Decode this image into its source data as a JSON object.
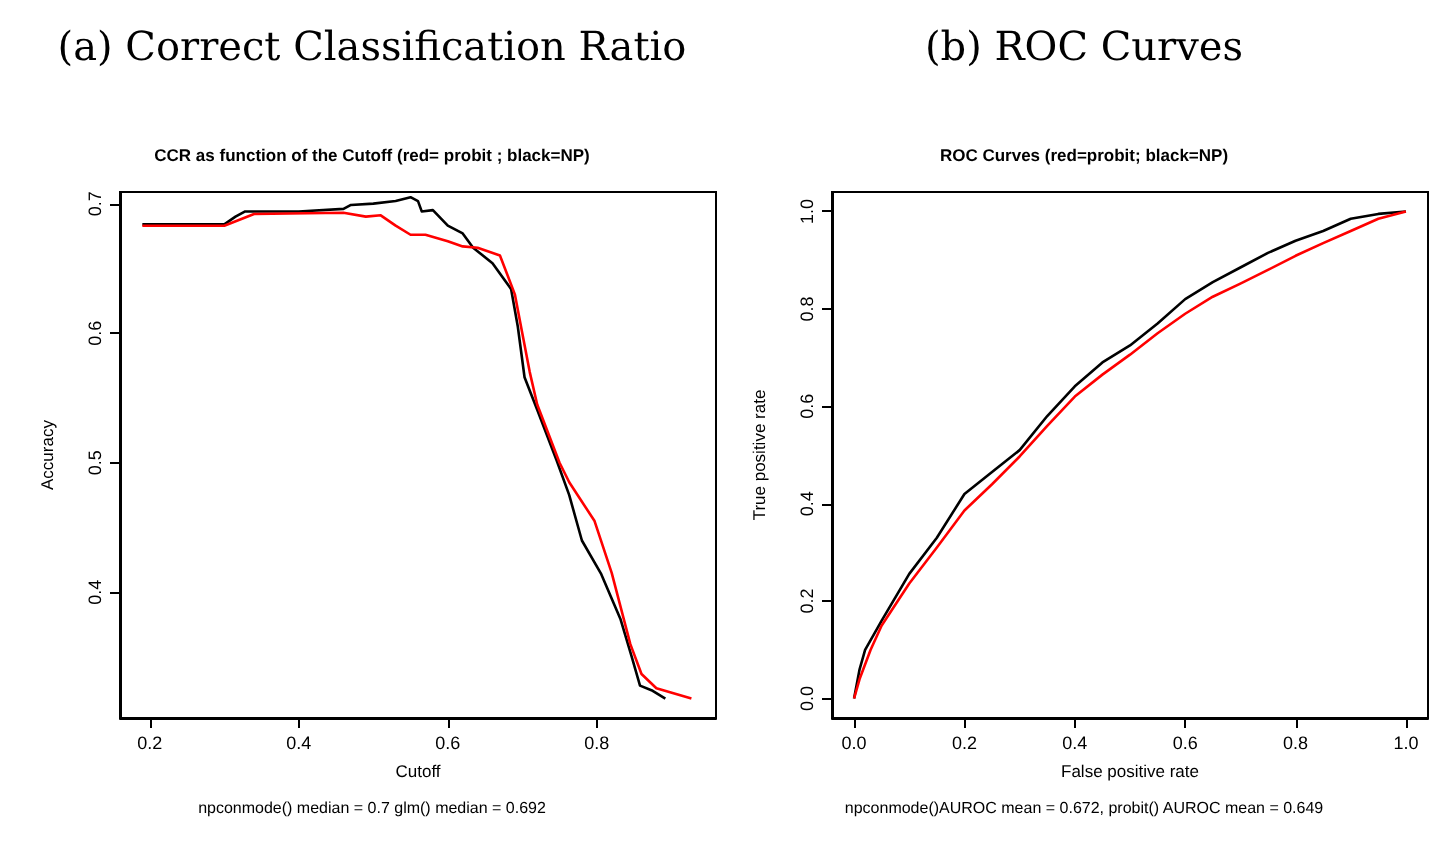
{
  "chart_data": [
    {
      "type": "line",
      "title": "(a) Correct Classification Ratio",
      "subtitle": "CCR as function of the Cutoff (red= probit ; black=NP)",
      "xlabel": "Cutoff",
      "ylabel": "Accuracy",
      "annotations": [
        "npconmode() median = 0.7 glm() median = 0.692"
      ],
      "xlim": [
        0.16,
        0.96
      ],
      "ylim": [
        0.303,
        0.709
      ],
      "xticks": [
        0.2,
        0.4,
        0.6,
        0.8
      ],
      "yticks": [
        0.4,
        0.5,
        0.6,
        0.7
      ],
      "grid": false,
      "marker": "none",
      "line_style": "solid",
      "series": [
        {
          "color": "#000000",
          "x": [
            0.19,
            0.3,
            0.315,
            0.328,
            0.4,
            0.46,
            0.47,
            0.5,
            0.53,
            0.55,
            0.56,
            0.565,
            0.58,
            0.6,
            0.62,
            0.634,
            0.66,
            0.685,
            0.694,
            0.703,
            0.72,
            0.746,
            0.763,
            0.78,
            0.806,
            0.832,
            0.847,
            0.858,
            0.875,
            0.892
          ],
          "values": [
            0.684,
            0.684,
            0.69,
            0.694,
            0.694,
            0.696,
            0.699,
            0.7,
            0.702,
            0.705,
            0.702,
            0.694,
            0.695,
            0.683,
            0.677,
            0.666,
            0.654,
            0.634,
            0.605,
            0.566,
            0.541,
            0.502,
            0.475,
            0.44,
            0.414,
            0.379,
            0.35,
            0.328,
            0.324,
            0.318
          ]
        },
        {
          "color": "#ff0000",
          "x": [
            0.19,
            0.3,
            0.34,
            0.46,
            0.49,
            0.51,
            0.53,
            0.55,
            0.57,
            0.6,
            0.62,
            0.64,
            0.67,
            0.69,
            0.7,
            0.71,
            0.72,
            0.75,
            0.763,
            0.797,
            0.82,
            0.845,
            0.86,
            0.88,
            0.927
          ],
          "values": [
            0.683,
            0.683,
            0.692,
            0.693,
            0.69,
            0.691,
            0.683,
            0.676,
            0.676,
            0.671,
            0.667,
            0.666,
            0.66,
            0.63,
            0.6,
            0.57,
            0.545,
            0.5,
            0.485,
            0.455,
            0.415,
            0.36,
            0.337,
            0.326,
            0.318
          ]
        }
      ]
    },
    {
      "type": "line",
      "title": "(b) ROC Curves",
      "subtitle": "ROC Curves (red=probit; black=NP)",
      "xlabel": "False positive rate",
      "ylabel": "True positive rate",
      "annotations": [
        "npconmode()AUROC mean = 0.672, probit() AUROC mean = 0.649"
      ],
      "xlim": [
        -0.04,
        1.04
      ],
      "ylim": [
        -0.04,
        1.04
      ],
      "xticks": [
        {
          "value": 0,
          "label": "0.0"
        },
        0.2,
        0.4,
        0.6,
        0.8,
        {
          "value": 1,
          "label": "1.0"
        }
      ],
      "yticks": [
        {
          "value": 0,
          "label": "0.0"
        },
        0.2,
        0.4,
        0.6,
        0.8,
        {
          "value": 1,
          "label": "1.0"
        }
      ],
      "grid": false,
      "marker": "none",
      "line_style": "solid",
      "series": [
        {
          "color": "#000000",
          "x": [
            0,
            0.01,
            0.02,
            0.05,
            0.1,
            0.15,
            0.2,
            0.25,
            0.3,
            0.35,
            0.4,
            0.45,
            0.5,
            0.55,
            0.6,
            0.65,
            0.7,
            0.75,
            0.8,
            0.85,
            0.9,
            0.95,
            1
          ],
          "values": [
            0,
            0.06,
            0.1,
            0.16,
            0.256,
            0.33,
            0.42,
            0.465,
            0.51,
            0.58,
            0.641,
            0.69,
            0.725,
            0.77,
            0.82,
            0.855,
            0.885,
            0.915,
            0.94,
            0.96,
            0.985,
            0.995,
            1
          ]
        },
        {
          "color": "#ff0000",
          "x": [
            0,
            0.01,
            0.03,
            0.05,
            0.1,
            0.15,
            0.2,
            0.25,
            0.3,
            0.35,
            0.4,
            0.45,
            0.5,
            0.55,
            0.6,
            0.65,
            0.7,
            0.75,
            0.8,
            0.85,
            0.9,
            0.95,
            1
          ],
          "values": [
            0,
            0.04,
            0.1,
            0.15,
            0.236,
            0.31,
            0.386,
            0.44,
            0.497,
            0.56,
            0.62,
            0.665,
            0.706,
            0.75,
            0.79,
            0.825,
            0.852,
            0.88,
            0.909,
            0.935,
            0.96,
            0.985,
            1
          ]
        }
      ]
    }
  ]
}
